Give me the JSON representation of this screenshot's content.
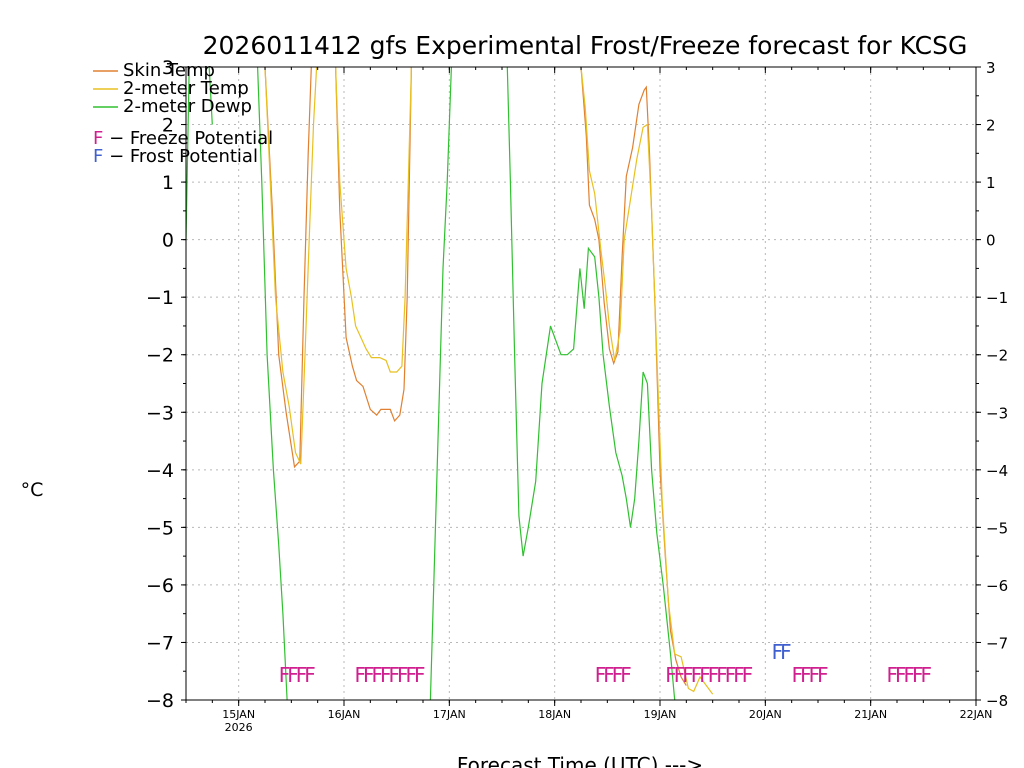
{
  "chart_data": {
    "type": "line",
    "title": "2026011412 gfs Experimental Frost/Freeze forecast for KCSG",
    "xlabel": "Forecast Time (UTC) --->",
    "ylabel": "°C",
    "ylim": [
      -8,
      3
    ],
    "xlim": [
      14.5,
      22.0
    ],
    "yticks": [
      -8,
      -7,
      -6,
      -5,
      -4,
      -3,
      -2,
      -1,
      0,
      1,
      2,
      3
    ],
    "ytick_labels": [
      "−8",
      "−7",
      "−6",
      "−5",
      "−4",
      "−3",
      "−2",
      "−1",
      "0",
      "1",
      "2",
      "3"
    ],
    "xticks": [
      {
        "value": 15,
        "label": "15JAN",
        "sub": "2026"
      },
      {
        "value": 16,
        "label": "16JAN",
        "sub": ""
      },
      {
        "value": 17,
        "label": "17JAN",
        "sub": ""
      },
      {
        "value": 18,
        "label": "18JAN",
        "sub": ""
      },
      {
        "value": 19,
        "label": "19JAN",
        "sub": ""
      },
      {
        "value": 20,
        "label": "20JAN",
        "sub": ""
      },
      {
        "value": 21,
        "label": "21JAN",
        "sub": ""
      },
      {
        "value": 22,
        "label": "22JAN",
        "sub": ""
      }
    ],
    "legend": {
      "position": "top-left",
      "entries": [
        {
          "name": "Skin Temp",
          "color": "#e08030"
        },
        {
          "name": "2-meter Temp",
          "color": "#e8c020"
        },
        {
          "name": "2-meter Dewp",
          "color": "#30c030"
        }
      ],
      "flag_entries": [
        {
          "letter": "F",
          "text": " − Freeze Potential",
          "color": "#d02090"
        },
        {
          "letter": "F",
          "text": " − Frost Potential",
          "color": "#4060d0"
        }
      ]
    },
    "series": [
      {
        "name": "Skin Temp",
        "color": "#e08030",
        "points": [
          [
            15.25,
            3.0
          ],
          [
            15.32,
            0.5
          ],
          [
            15.38,
            -2.0
          ],
          [
            15.45,
            -3.0
          ],
          [
            15.53,
            -3.95
          ],
          [
            15.58,
            -3.85
          ],
          [
            15.62,
            -1.0
          ],
          [
            15.66,
            1.5
          ],
          [
            15.69,
            3.0
          ],
          [
            15.92,
            3.0
          ],
          [
            15.96,
            0.5
          ],
          [
            16.02,
            -1.7
          ],
          [
            16.08,
            -2.2
          ],
          [
            16.12,
            -2.45
          ],
          [
            16.18,
            -2.55
          ],
          [
            16.25,
            -2.95
          ],
          [
            16.31,
            -3.05
          ],
          [
            16.35,
            -2.95
          ],
          [
            16.44,
            -2.95
          ],
          [
            16.48,
            -3.15
          ],
          [
            16.53,
            -3.05
          ],
          [
            16.57,
            -2.6
          ],
          [
            16.6,
            -1.0
          ],
          [
            16.62,
            1.0
          ],
          [
            16.64,
            3.0
          ],
          [
            18.25,
            3.0
          ],
          [
            18.3,
            1.8
          ],
          [
            18.33,
            0.6
          ],
          [
            18.38,
            0.35
          ],
          [
            18.42,
            0.0
          ],
          [
            18.47,
            -1.1
          ],
          [
            18.52,
            -1.9
          ],
          [
            18.56,
            -2.15
          ],
          [
            18.6,
            -1.95
          ],
          [
            18.64,
            -0.3
          ],
          [
            18.68,
            1.1
          ],
          [
            18.74,
            1.6
          ],
          [
            18.8,
            2.35
          ],
          [
            18.85,
            2.6
          ],
          [
            18.87,
            2.65
          ],
          [
            18.9,
            1.5
          ],
          [
            18.95,
            -1.0
          ],
          [
            19.0,
            -4.0
          ],
          [
            19.05,
            -5.5
          ],
          [
            19.1,
            -6.8
          ],
          [
            19.15,
            -7.3
          ],
          [
            19.2,
            -7.6
          ],
          [
            19.25,
            -7.75
          ]
        ]
      },
      {
        "name": "2-meter Temp",
        "color": "#e8c020",
        "points": [
          [
            15.25,
            3.0
          ],
          [
            15.3,
            1.0
          ],
          [
            15.35,
            -1.0
          ],
          [
            15.42,
            -2.3
          ],
          [
            15.48,
            -2.9
          ],
          [
            15.54,
            -3.7
          ],
          [
            15.59,
            -3.9
          ],
          [
            15.63,
            -2.0
          ],
          [
            15.67,
            0.0
          ],
          [
            15.71,
            2.0
          ],
          [
            15.74,
            3.0
          ],
          [
            15.92,
            3.0
          ],
          [
            15.96,
            1.0
          ],
          [
            16.02,
            -0.5
          ],
          [
            16.07,
            -1.0
          ],
          [
            16.11,
            -1.5
          ],
          [
            16.16,
            -1.7
          ],
          [
            16.21,
            -1.9
          ],
          [
            16.26,
            -2.05
          ],
          [
            16.34,
            -2.05
          ],
          [
            16.4,
            -2.1
          ],
          [
            16.44,
            -2.3
          ],
          [
            16.5,
            -2.3
          ],
          [
            16.55,
            -2.2
          ],
          [
            16.58,
            -1.0
          ],
          [
            16.61,
            1.0
          ],
          [
            16.64,
            3.0
          ],
          [
            18.25,
            3.0
          ],
          [
            18.29,
            2.3
          ],
          [
            18.33,
            1.2
          ],
          [
            18.38,
            0.8
          ],
          [
            18.44,
            -0.2
          ],
          [
            18.48,
            -0.8
          ],
          [
            18.52,
            -1.5
          ],
          [
            18.57,
            -2.1
          ],
          [
            18.62,
            -1.6
          ],
          [
            18.66,
            0.0
          ],
          [
            18.72,
            0.7
          ],
          [
            18.78,
            1.4
          ],
          [
            18.84,
            1.95
          ],
          [
            18.88,
            2.0
          ],
          [
            18.92,
            0.5
          ],
          [
            18.97,
            -2.0
          ],
          [
            19.02,
            -4.5
          ],
          [
            19.08,
            -6.3
          ],
          [
            19.14,
            -7.2
          ],
          [
            19.2,
            -7.25
          ],
          [
            19.27,
            -7.8
          ],
          [
            19.32,
            -7.85
          ],
          [
            19.38,
            -7.6
          ],
          [
            19.46,
            -7.8
          ],
          [
            19.5,
            -7.9
          ]
        ]
      },
      {
        "name": "2-meter Dewp",
        "color": "#30c030",
        "points": [
          [
            14.5,
            0.0
          ],
          [
            14.53,
            3.0
          ],
          [
            14.72,
            3.0
          ],
          [
            14.75,
            2.0
          ],
          [
            15.18,
            3.0
          ],
          [
            15.22,
            1.0
          ],
          [
            15.27,
            -2.0
          ],
          [
            15.33,
            -4.0
          ],
          [
            15.38,
            -5.3
          ],
          [
            15.42,
            -6.5
          ],
          [
            15.46,
            -8.0
          ],
          [
            16.82,
            -8.0
          ],
          [
            16.86,
            -5.5
          ],
          [
            16.9,
            -3.0
          ],
          [
            16.94,
            -0.5
          ],
          [
            16.98,
            1.0
          ],
          [
            17.02,
            3.0
          ],
          [
            17.55,
            3.0
          ],
          [
            17.58,
            1.0
          ],
          [
            17.62,
            -2.0
          ],
          [
            17.66,
            -4.8
          ],
          [
            17.7,
            -5.5
          ],
          [
            17.75,
            -5.0
          ],
          [
            17.82,
            -4.2
          ],
          [
            17.88,
            -2.5
          ],
          [
            17.96,
            -1.5
          ],
          [
            18.02,
            -1.8
          ],
          [
            18.06,
            -2.0
          ],
          [
            18.12,
            -2.0
          ],
          [
            18.18,
            -1.9
          ],
          [
            18.24,
            -0.5
          ],
          [
            18.28,
            -1.2
          ],
          [
            18.32,
            -0.15
          ],
          [
            18.38,
            -0.3
          ],
          [
            18.42,
            -1.0
          ],
          [
            18.46,
            -2.0
          ],
          [
            18.52,
            -2.9
          ],
          [
            18.58,
            -3.7
          ],
          [
            18.64,
            -4.1
          ],
          [
            18.68,
            -4.5
          ],
          [
            18.72,
            -5.0
          ],
          [
            18.76,
            -4.5
          ],
          [
            18.8,
            -3.5
          ],
          [
            18.84,
            -2.3
          ],
          [
            18.88,
            -2.5
          ],
          [
            18.92,
            -4.0
          ],
          [
            18.97,
            -5.1
          ],
          [
            19.03,
            -6.0
          ],
          [
            19.1,
            -7.2
          ],
          [
            19.14,
            -8.0
          ]
        ]
      }
    ],
    "flags": [
      {
        "type": "freeze",
        "color": "#d02090",
        "text": "FFFF",
        "x": 15.38,
        "y": -7.55
      },
      {
        "type": "freeze",
        "color": "#d02090",
        "text": "FFFFFFFF",
        "x": 16.1,
        "y": -7.55
      },
      {
        "type": "freeze",
        "color": "#d02090",
        "text": "FFFF",
        "x": 18.38,
        "y": -7.55
      },
      {
        "type": "freeze",
        "color": "#d02090",
        "text": "FFFFFFFFFF",
        "x": 19.05,
        "y": -7.55
      },
      {
        "type": "freeze",
        "color": "#d02090",
        "text": "FFFF",
        "x": 20.25,
        "y": -7.55
      },
      {
        "type": "freeze",
        "color": "#d02090",
        "text": "FFFFF",
        "x": 21.15,
        "y": -7.55
      },
      {
        "type": "frost",
        "color": "#4060d0",
        "text": "FF",
        "x": 20.06,
        "y": -7.15
      }
    ]
  }
}
